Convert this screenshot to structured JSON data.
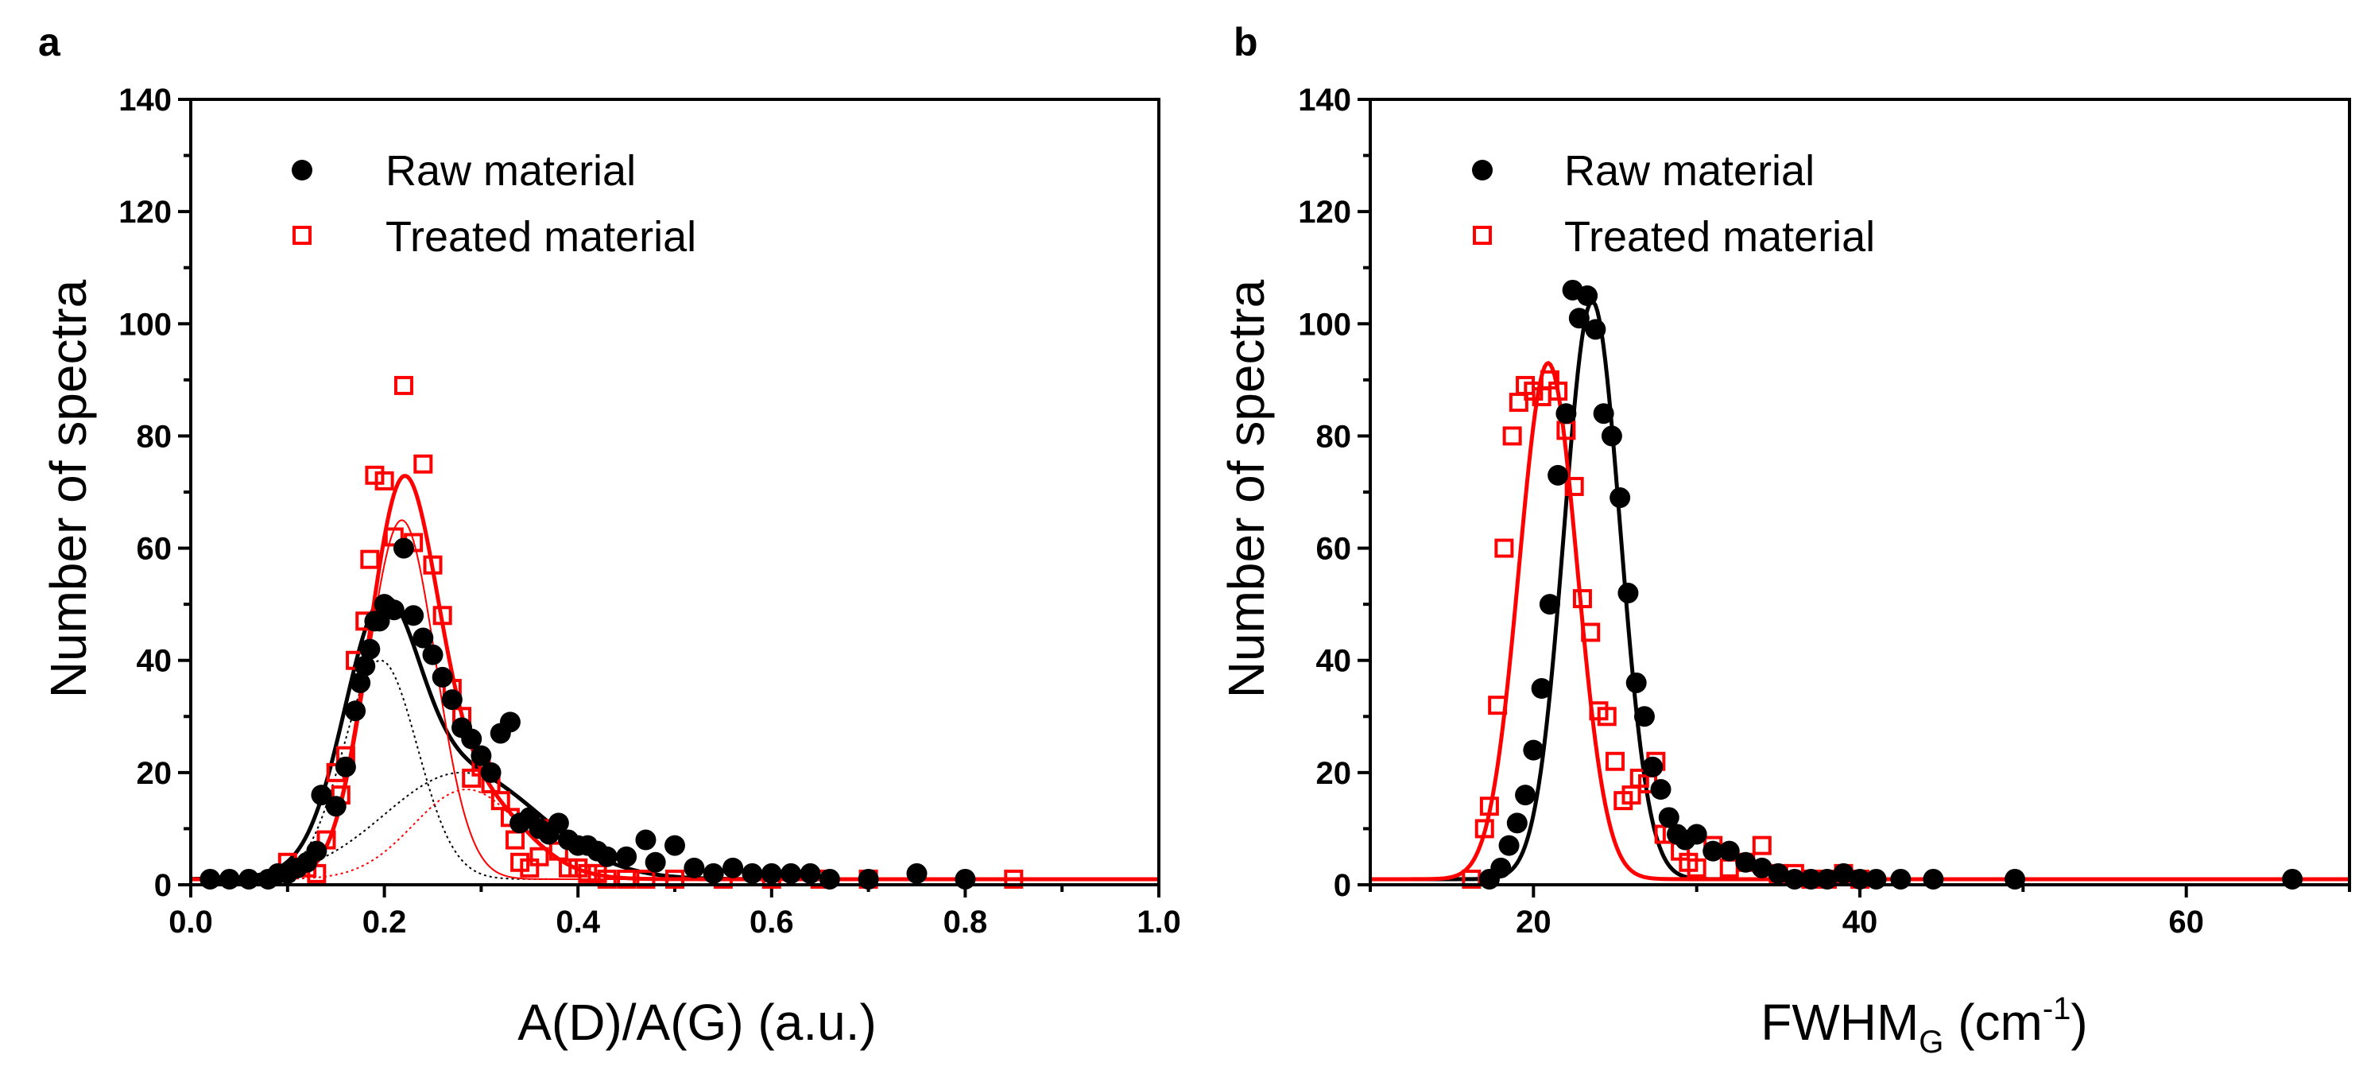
{
  "chart_data": [
    {
      "type": "scatter",
      "panel_label": "a",
      "xlabel": "A(D)/A(G) (a.u.)",
      "ylabel": "Number of spectra",
      "xlim": [
        0.0,
        1.0
      ],
      "ylim": [
        0,
        140
      ],
      "xticks": [
        0.0,
        0.2,
        0.4,
        0.6,
        0.8,
        1.0
      ],
      "xtick_labels": [
        "0.0",
        "0.2",
        "0.4",
        "0.6",
        "0.8",
        "1.0"
      ],
      "yticks": [
        0,
        20,
        40,
        60,
        80,
        100,
        120,
        140
      ],
      "ytick_labels": [
        "0",
        "20",
        "40",
        "60",
        "80",
        "100",
        "120",
        "140"
      ],
      "legend": {
        "placement": "top-left",
        "entries": [
          "Raw material",
          "Treated material"
        ]
      },
      "series": [
        {
          "name": "Raw material",
          "marker": "filled-circle",
          "color": "#000000",
          "points": [
            [
              0.02,
              1
            ],
            [
              0.04,
              1
            ],
            [
              0.06,
              1
            ],
            [
              0.08,
              1
            ],
            [
              0.09,
              2
            ],
            [
              0.1,
              2
            ],
            [
              0.11,
              3
            ],
            [
              0.12,
              4
            ],
            [
              0.13,
              6
            ],
            [
              0.135,
              16
            ],
            [
              0.15,
              14
            ],
            [
              0.16,
              21
            ],
            [
              0.17,
              31
            ],
            [
              0.175,
              36
            ],
            [
              0.18,
              39
            ],
            [
              0.185,
              42
            ],
            [
              0.19,
              47
            ],
            [
              0.195,
              47
            ],
            [
              0.2,
              50
            ],
            [
              0.21,
              49
            ],
            [
              0.22,
              60
            ],
            [
              0.23,
              48
            ],
            [
              0.24,
              44
            ],
            [
              0.25,
              41
            ],
            [
              0.26,
              37
            ],
            [
              0.27,
              33
            ],
            [
              0.28,
              28
            ],
            [
              0.29,
              26
            ],
            [
              0.3,
              23
            ],
            [
              0.31,
              20
            ],
            [
              0.32,
              27
            ],
            [
              0.33,
              29
            ],
            [
              0.34,
              11
            ],
            [
              0.35,
              12
            ],
            [
              0.36,
              10
            ],
            [
              0.37,
              9
            ],
            [
              0.38,
              11
            ],
            [
              0.39,
              8
            ],
            [
              0.4,
              7
            ],
            [
              0.41,
              7
            ],
            [
              0.42,
              6
            ],
            [
              0.43,
              5
            ],
            [
              0.45,
              5
            ],
            [
              0.47,
              8
            ],
            [
              0.48,
              4
            ],
            [
              0.5,
              7
            ],
            [
              0.52,
              3
            ],
            [
              0.54,
              2
            ],
            [
              0.56,
              3
            ],
            [
              0.58,
              2
            ],
            [
              0.6,
              2
            ],
            [
              0.62,
              2
            ],
            [
              0.64,
              2
            ],
            [
              0.66,
              1
            ],
            [
              0.7,
              1
            ],
            [
              0.75,
              2
            ],
            [
              0.8,
              1
            ]
          ]
        },
        {
          "name": "Treated material",
          "marker": "open-square",
          "color": "#ff0000",
          "points": [
            [
              0.1,
              4
            ],
            [
              0.12,
              3
            ],
            [
              0.13,
              2
            ],
            [
              0.14,
              8
            ],
            [
              0.15,
              20
            ],
            [
              0.155,
              16
            ],
            [
              0.16,
              23
            ],
            [
              0.17,
              40
            ],
            [
              0.18,
              47
            ],
            [
              0.185,
              58
            ],
            [
              0.19,
              73
            ],
            [
              0.2,
              72
            ],
            [
              0.21,
              62
            ],
            [
              0.22,
              89
            ],
            [
              0.23,
              61
            ],
            [
              0.24,
              75
            ],
            [
              0.25,
              57
            ],
            [
              0.26,
              48
            ],
            [
              0.27,
              35
            ],
            [
              0.28,
              30
            ],
            [
              0.29,
              19
            ],
            [
              0.3,
              21
            ],
            [
              0.31,
              18
            ],
            [
              0.32,
              15
            ],
            [
              0.33,
              12
            ],
            [
              0.335,
              8
            ],
            [
              0.34,
              4
            ],
            [
              0.35,
              3
            ],
            [
              0.36,
              5
            ],
            [
              0.37,
              10
            ],
            [
              0.38,
              6
            ],
            [
              0.39,
              3
            ],
            [
              0.4,
              3
            ],
            [
              0.41,
              2
            ],
            [
              0.42,
              2
            ],
            [
              0.43,
              1
            ],
            [
              0.45,
              1
            ],
            [
              0.47,
              1
            ],
            [
              0.5,
              1
            ],
            [
              0.55,
              1
            ],
            [
              0.6,
              1
            ],
            [
              0.65,
              1
            ],
            [
              0.7,
              1
            ],
            [
              0.85,
              1
            ]
          ]
        }
      ],
      "fits": [
        {
          "name": "Raw material total fit",
          "color": "#000000",
          "style": "solid",
          "width": "thick",
          "baseline": 1,
          "components": [
            {
              "amp": 39,
              "center": 0.196,
              "sigma": 0.038
            },
            {
              "amp": 19,
              "center": 0.28,
              "sigma": 0.08
            }
          ]
        },
        {
          "name": "Raw material component 1",
          "color": "#000000",
          "style": "dotted",
          "width": "thin",
          "baseline": 1,
          "components": [
            {
              "amp": 39,
              "center": 0.196,
              "sigma": 0.038
            }
          ]
        },
        {
          "name": "Raw material component 2",
          "color": "#000000",
          "style": "dotted",
          "width": "thin",
          "baseline": 1,
          "components": [
            {
              "amp": 19,
              "center": 0.28,
              "sigma": 0.08
            }
          ]
        },
        {
          "name": "Treated material total fit",
          "color": "#ff0000",
          "style": "solid",
          "width": "thick",
          "baseline": 1,
          "components": [
            {
              "amp": 64,
              "center": 0.218,
              "sigma": 0.035
            },
            {
              "amp": 16,
              "center": 0.285,
              "sigma": 0.055
            }
          ]
        },
        {
          "name": "Treated material component 1",
          "color": "#ff0000",
          "style": "solid",
          "width": "thin",
          "baseline": 1,
          "components": [
            {
              "amp": 64,
              "center": 0.218,
              "sigma": 0.035
            }
          ]
        },
        {
          "name": "Treated material component 2",
          "color": "#ff0000",
          "style": "dotted",
          "width": "thin",
          "baseline": 1,
          "components": [
            {
              "amp": 16,
              "center": 0.285,
              "sigma": 0.055
            }
          ]
        }
      ]
    },
    {
      "type": "scatter",
      "panel_label": "b",
      "xlabel_main": "FWHM",
      "xlabel_subscript": "G",
      "xlabel_unit_open": " (cm",
      "xlabel_superscript": "-1",
      "xlabel_unit_close": ")",
      "ylabel": "Number of spectra",
      "xlim": [
        10,
        70
      ],
      "ylim": [
        0,
        140
      ],
      "xticks": [
        20,
        40,
        60
      ],
      "xtick_labels": [
        "20",
        "40",
        "60"
      ],
      "yticks": [
        0,
        20,
        40,
        60,
        80,
        100,
        120,
        140
      ],
      "ytick_labels": [
        "0",
        "20",
        "40",
        "60",
        "80",
        "100",
        "120",
        "140"
      ],
      "legend": {
        "placement": "top-left",
        "entries": [
          "Raw material",
          "Treated material"
        ]
      },
      "series": [
        {
          "name": "Raw material",
          "marker": "filled-circle",
          "color": "#000000",
          "points": [
            [
              17.3,
              1
            ],
            [
              18,
              3
            ],
            [
              18.5,
              7
            ],
            [
              19,
              11
            ],
            [
              19.5,
              16
            ],
            [
              20,
              24
            ],
            [
              20.5,
              35
            ],
            [
              21,
              50
            ],
            [
              21.5,
              73
            ],
            [
              22,
              84
            ],
            [
              22.4,
              106
            ],
            [
              22.8,
              101
            ],
            [
              23.3,
              105
            ],
            [
              23.8,
              99
            ],
            [
              24.3,
              84
            ],
            [
              24.8,
              80
            ],
            [
              25.3,
              69
            ],
            [
              25.8,
              52
            ],
            [
              26.3,
              36
            ],
            [
              26.8,
              30
            ],
            [
              27.3,
              21
            ],
            [
              27.8,
              17
            ],
            [
              28.3,
              12
            ],
            [
              28.8,
              9
            ],
            [
              29.3,
              8
            ],
            [
              30,
              9
            ],
            [
              31,
              6
            ],
            [
              32,
              6
            ],
            [
              33,
              4
            ],
            [
              34,
              3
            ],
            [
              35,
              2
            ],
            [
              36,
              1
            ],
            [
              37,
              1
            ],
            [
              38,
              1
            ],
            [
              39,
              2
            ],
            [
              40,
              1
            ],
            [
              41,
              1
            ],
            [
              42.5,
              1
            ],
            [
              44.5,
              1
            ],
            [
              49.5,
              1
            ],
            [
              66.5,
              1
            ]
          ]
        },
        {
          "name": "Treated material",
          "marker": "open-square",
          "color": "#ff0000",
          "points": [
            [
              16.2,
              1
            ],
            [
              17,
              10
            ],
            [
              17.3,
              14
            ],
            [
              17.8,
              32
            ],
            [
              18.2,
              60
            ],
            [
              18.7,
              80
            ],
            [
              19.1,
              86
            ],
            [
              19.5,
              89
            ],
            [
              20,
              88
            ],
            [
              20.5,
              87
            ],
            [
              21,
              90
            ],
            [
              21.5,
              88
            ],
            [
              22,
              81
            ],
            [
              22.5,
              71
            ],
            [
              23,
              51
            ],
            [
              23.5,
              45
            ],
            [
              24,
              31
            ],
            [
              24.5,
              30
            ],
            [
              25,
              22
            ],
            [
              25.5,
              15
            ],
            [
              26,
              16
            ],
            [
              26.5,
              19
            ],
            [
              27,
              18
            ],
            [
              27.5,
              22
            ],
            [
              28,
              9
            ],
            [
              28.5,
              9
            ],
            [
              29,
              6
            ],
            [
              29.5,
              4
            ],
            [
              30,
              3
            ],
            [
              31,
              7
            ],
            [
              32,
              3
            ],
            [
              33,
              4
            ],
            [
              34,
              7
            ],
            [
              35,
              2
            ],
            [
              36,
              2
            ],
            [
              37,
              1
            ],
            [
              38,
              1
            ],
            [
              39,
              2
            ],
            [
              40,
              1
            ]
          ]
        }
      ],
      "fits": [
        {
          "name": "Raw material fit",
          "color": "#000000",
          "style": "solid",
          "width": "thick",
          "baseline": 1,
          "components": [
            {
              "amp": 103,
              "center": 23.6,
              "sigma": 1.72
            }
          ]
        },
        {
          "name": "Treated material fit",
          "color": "#ff0000",
          "style": "solid",
          "width": "thick",
          "baseline": 1,
          "components": [
            {
              "amp": 92,
              "center": 20.9,
              "sigma": 1.78
            }
          ]
        }
      ]
    }
  ]
}
